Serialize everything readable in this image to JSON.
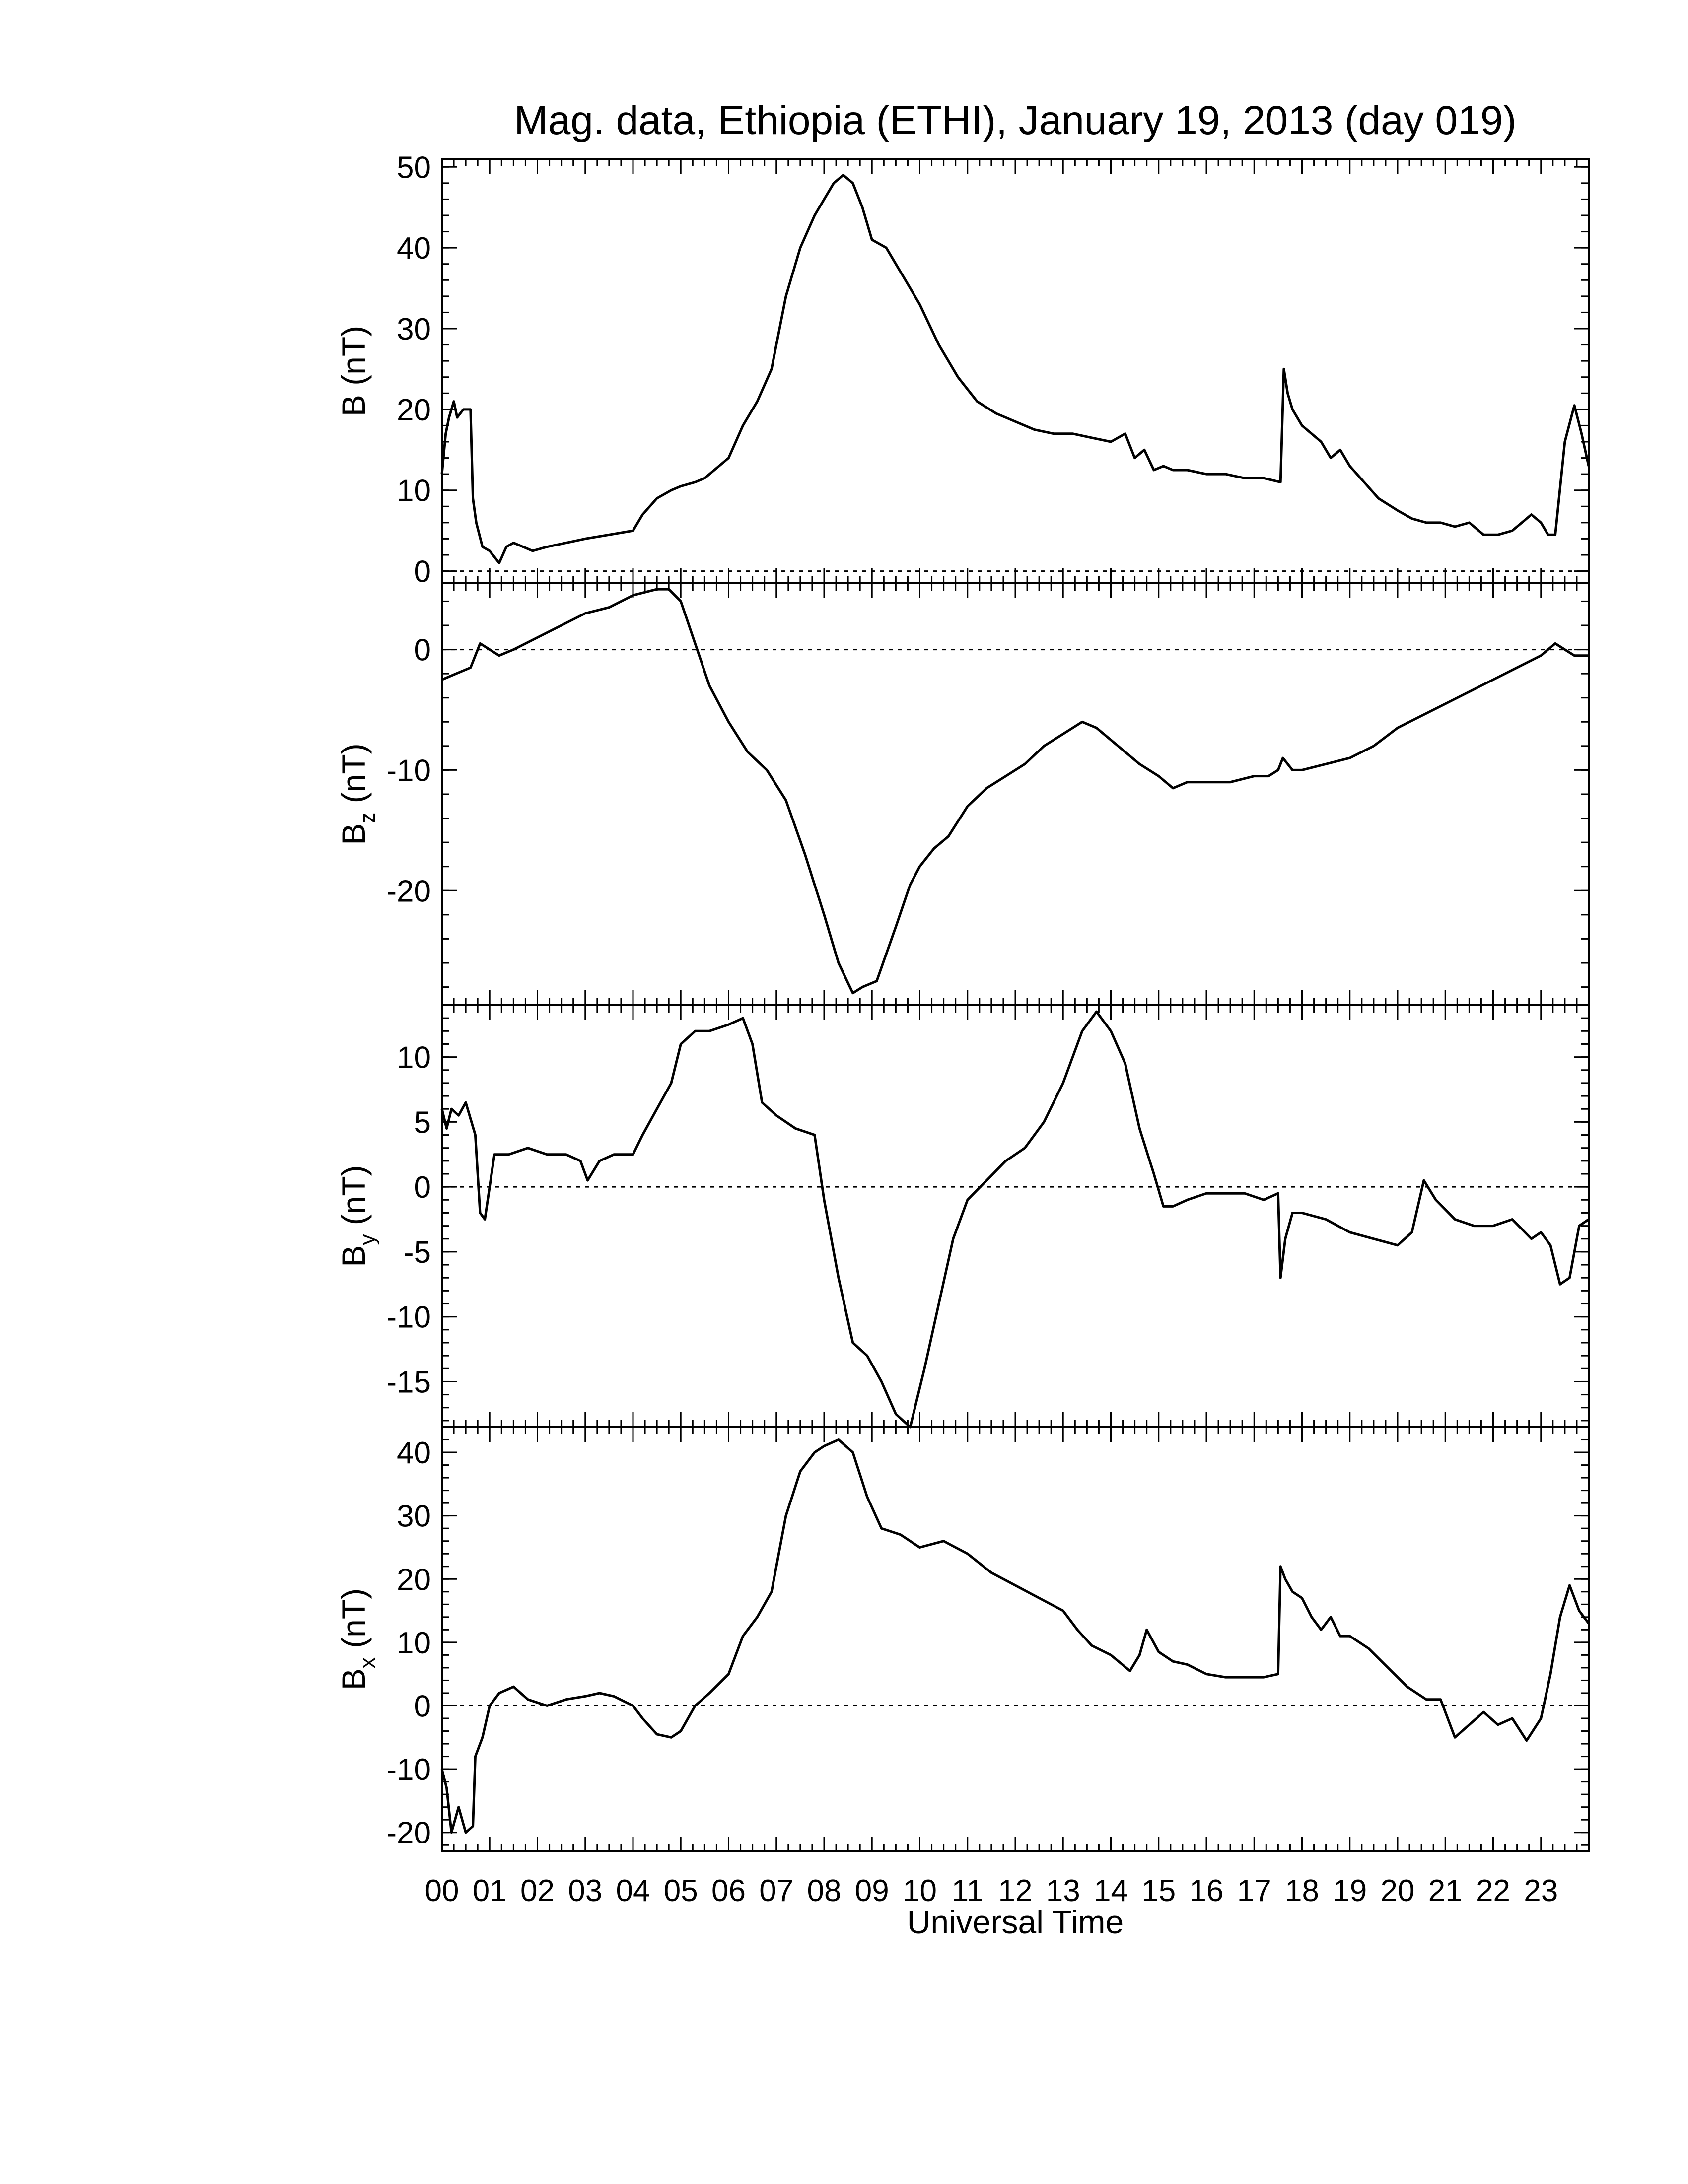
{
  "chart_data": {
    "type": "line",
    "title": "Mag. data, Ethiopia (ETHI), January 19, 2013 (day 019)",
    "xlabel": "Universal Time",
    "x_tick_labels": [
      "00",
      "01",
      "02",
      "03",
      "04",
      "05",
      "06",
      "07",
      "08",
      "09",
      "10",
      "11",
      "12",
      "13",
      "14",
      "15",
      "16",
      "17",
      "18",
      "19",
      "20",
      "21",
      "22",
      "23"
    ],
    "xlim": [
      0,
      24
    ],
    "panels": [
      {
        "id": "B",
        "ylabel_main": "B",
        "ylabel_sub": "",
        "ylabel_unit": "(nT)",
        "ylim": [
          -1.5,
          51
        ],
        "yticks": [
          0,
          10,
          20,
          30,
          40,
          50
        ],
        "zero_line": true,
        "series": {
          "x": [
            0,
            0.08,
            0.15,
            0.25,
            0.32,
            0.45,
            0.6,
            0.65,
            0.72,
            0.85,
            1.0,
            1.2,
            1.35,
            1.5,
            1.7,
            1.9,
            2.2,
            2.6,
            3.0,
            3.5,
            4.0,
            4.2,
            4.5,
            4.8,
            5.0,
            5.3,
            5.5,
            6.0,
            6.3,
            6.6,
            6.9,
            7.2,
            7.5,
            7.8,
            8.0,
            8.2,
            8.4,
            8.6,
            8.8,
            9.0,
            9.3,
            9.6,
            10.0,
            10.4,
            10.8,
            11.2,
            11.6,
            12.0,
            12.4,
            12.8,
            13.2,
            13.6,
            14.0,
            14.3,
            14.5,
            14.7,
            14.9,
            15.1,
            15.3,
            15.6,
            16.0,
            16.4,
            16.8,
            17.2,
            17.55,
            17.62,
            17.7,
            17.8,
            18.0,
            18.2,
            18.4,
            18.6,
            18.8,
            19.0,
            19.3,
            19.6,
            20.0,
            20.3,
            20.6,
            20.9,
            21.2,
            21.5,
            21.8,
            22.1,
            22.4,
            22.6,
            22.8,
            23.0,
            23.15,
            23.3,
            23.5,
            23.7,
            23.85,
            24.0
          ],
          "y": [
            12,
            17,
            19,
            21,
            19,
            20,
            20,
            9,
            6,
            3,
            2.5,
            1,
            3,
            3.5,
            3,
            2.5,
            3,
            3.5,
            4,
            4.5,
            5,
            7,
            9,
            10,
            10.5,
            11,
            11.5,
            14,
            18,
            21,
            25,
            34,
            40,
            44,
            46,
            48,
            49,
            48,
            45,
            41,
            40,
            37,
            33,
            28,
            24,
            21,
            19.5,
            18.5,
            17.5,
            17,
            17,
            16.5,
            16,
            17,
            14,
            15,
            12.5,
            13,
            12.5,
            12.5,
            12,
            12,
            11.5,
            11.5,
            11,
            25,
            22,
            20,
            18,
            17,
            16,
            14,
            15,
            13,
            11,
            9,
            7.5,
            6.5,
            6,
            6,
            5.5,
            6,
            4.5,
            4.5,
            5,
            6,
            7,
            6,
            4.5,
            4.5,
            16,
            20.5,
            17,
            13
          ]
        }
      },
      {
        "id": "Bz",
        "ylabel_main": "B",
        "ylabel_sub": "z",
        "ylabel_unit": "(nT)",
        "ylim": [
          -29.5,
          5.5
        ],
        "yticks": [
          0,
          -10,
          -20
        ],
        "zero_line": true,
        "series": {
          "x": [
            0,
            0.3,
            0.6,
            0.8,
            1.0,
            1.2,
            1.5,
            2.0,
            2.5,
            3.0,
            3.5,
            4.0,
            4.5,
            4.75,
            5.0,
            5.3,
            5.6,
            6.0,
            6.4,
            6.8,
            7.2,
            7.6,
            8.0,
            8.3,
            8.6,
            8.8,
            9.1,
            9.5,
            9.8,
            10.0,
            10.3,
            10.6,
            11.0,
            11.4,
            11.8,
            12.2,
            12.6,
            13.0,
            13.4,
            13.7,
            14.0,
            14.3,
            14.6,
            15.0,
            15.3,
            15.6,
            16.0,
            16.5,
            17.0,
            17.3,
            17.5,
            17.6,
            17.8,
            18.0,
            18.5,
            19.0,
            19.5,
            20.0,
            20.5,
            21.0,
            21.5,
            22.0,
            22.5,
            23.0,
            23.3,
            23.5,
            23.7,
            24.0
          ],
          "y": [
            -2.5,
            -2,
            -1.5,
            0.5,
            0,
            -0.5,
            0,
            1,
            2,
            3,
            3.5,
            4.5,
            5,
            5,
            4,
            0.5,
            -3,
            -6,
            -8.5,
            -10,
            -12.5,
            -17,
            -22,
            -26,
            -28.5,
            -28,
            -27.5,
            -23,
            -19.5,
            -18,
            -16.5,
            -15.5,
            -13,
            -11.5,
            -10.5,
            -9.5,
            -8,
            -7,
            -6,
            -6.5,
            -7.5,
            -8.5,
            -9.5,
            -10.5,
            -11.5,
            -11,
            -11,
            -11,
            -10.5,
            -10.5,
            -10,
            -9,
            -10,
            -10,
            -9.5,
            -9,
            -8,
            -6.5,
            -5.5,
            -4.5,
            -3.5,
            -2.5,
            -1.5,
            -0.5,
            0.5,
            0,
            -0.5,
            -0.5
          ]
        }
      },
      {
        "id": "By",
        "ylabel_main": "B",
        "ylabel_sub": "y",
        "ylabel_unit": "(nT)",
        "ylim": [
          -18.5,
          14
        ],
        "yticks": [
          10,
          5,
          0,
          -5,
          -10,
          -15
        ],
        "zero_line": true,
        "series": {
          "x": [
            0,
            0.1,
            0.2,
            0.35,
            0.5,
            0.7,
            0.8,
            0.9,
            1.1,
            1.2,
            1.4,
            1.8,
            2.2,
            2.6,
            2.9,
            3.05,
            3.3,
            3.6,
            4.0,
            4.2,
            4.5,
            4.8,
            5.0,
            5.3,
            5.6,
            6.0,
            6.3,
            6.5,
            6.7,
            7.0,
            7.4,
            7.8,
            8.0,
            8.3,
            8.6,
            8.9,
            9.2,
            9.5,
            9.8,
            10.1,
            10.4,
            10.7,
            11.0,
            11.4,
            11.8,
            12.2,
            12.6,
            13.0,
            13.4,
            13.7,
            14.0,
            14.3,
            14.6,
            14.9,
            15.1,
            15.3,
            15.6,
            16.0,
            16.4,
            16.8,
            17.2,
            17.5,
            17.55,
            17.65,
            17.8,
            18.0,
            18.5,
            19.0,
            19.5,
            20.0,
            20.3,
            20.55,
            20.8,
            21.2,
            21.6,
            22.0,
            22.4,
            22.8,
            23.0,
            23.2,
            23.4,
            23.6,
            23.8,
            24.0
          ],
          "y": [
            6,
            4.5,
            6,
            5.5,
            6.5,
            4,
            -2,
            -2.5,
            2.5,
            2.5,
            2.5,
            3,
            2.5,
            2.5,
            2,
            0.5,
            2,
            2.5,
            2.5,
            4,
            6,
            8,
            11,
            12,
            12,
            12.5,
            13,
            11,
            6.5,
            5.5,
            4.5,
            4,
            -1,
            -7,
            -12,
            -13,
            -15,
            -17.5,
            -18.5,
            -14,
            -9,
            -4,
            -1,
            0.5,
            2,
            3,
            5,
            8,
            12,
            13.5,
            12,
            9.5,
            4.5,
            1,
            -1.5,
            -1.5,
            -1,
            -0.5,
            -0.5,
            -0.5,
            -1,
            -0.5,
            -7,
            -4,
            -2,
            -2,
            -2.5,
            -3.5,
            -4,
            -4.5,
            -3.5,
            0.5,
            -1,
            -2.5,
            -3,
            -3,
            -2.5,
            -4,
            -3.5,
            -4.5,
            -7.5,
            -7,
            -3,
            -2.5
          ]
        }
      },
      {
        "id": "Bx",
        "ylabel_main": "B",
        "ylabel_sub": "x",
        "ylabel_unit": "(nT)",
        "ylim": [
          -23,
          44
        ],
        "yticks": [
          40,
          30,
          20,
          10,
          0,
          -10,
          -20
        ],
        "zero_line": true,
        "series": {
          "x": [
            0,
            0.1,
            0.2,
            0.35,
            0.5,
            0.65,
            0.7,
            0.85,
            1.0,
            1.2,
            1.5,
            1.8,
            2.2,
            2.6,
            3.0,
            3.3,
            3.6,
            4.0,
            4.2,
            4.5,
            4.8,
            5.0,
            5.3,
            5.6,
            6.0,
            6.3,
            6.6,
            6.9,
            7.2,
            7.5,
            7.8,
            8.0,
            8.3,
            8.6,
            8.9,
            9.2,
            9.6,
            10.0,
            10.5,
            11.0,
            11.5,
            12.0,
            12.5,
            13.0,
            13.3,
            13.6,
            14.0,
            14.4,
            14.6,
            14.75,
            15.0,
            15.3,
            15.6,
            16.0,
            16.4,
            16.8,
            17.2,
            17.5,
            17.55,
            17.65,
            17.8,
            18.0,
            18.2,
            18.4,
            18.6,
            18.8,
            19.0,
            19.4,
            19.8,
            20.2,
            20.6,
            20.9,
            21.2,
            21.5,
            21.8,
            22.1,
            22.4,
            22.7,
            23.0,
            23.2,
            23.4,
            23.6,
            23.8,
            24.0
          ],
          "y": [
            -10,
            -13,
            -20,
            -16,
            -20,
            -19,
            -8,
            -5,
            0,
            2,
            3,
            1,
            0,
            1,
            1.5,
            2,
            1.5,
            0,
            -2,
            -4.5,
            -5,
            -4,
            0,
            2,
            5,
            11,
            14,
            18,
            30,
            37,
            40,
            41,
            42,
            40,
            33,
            28,
            27,
            25,
            26,
            24,
            21,
            19,
            17,
            15,
            12,
            9.5,
            8,
            5.5,
            8,
            12,
            8.5,
            7,
            6.5,
            5,
            4.5,
            4.5,
            4.5,
            5,
            22,
            20,
            18,
            17,
            14,
            12,
            14,
            11,
            11,
            9,
            6,
            3,
            1,
            1,
            -5,
            -3,
            -1,
            -3,
            -2,
            -5.5,
            -2,
            5,
            14,
            19,
            15,
            13
          ]
        }
      }
    ]
  }
}
